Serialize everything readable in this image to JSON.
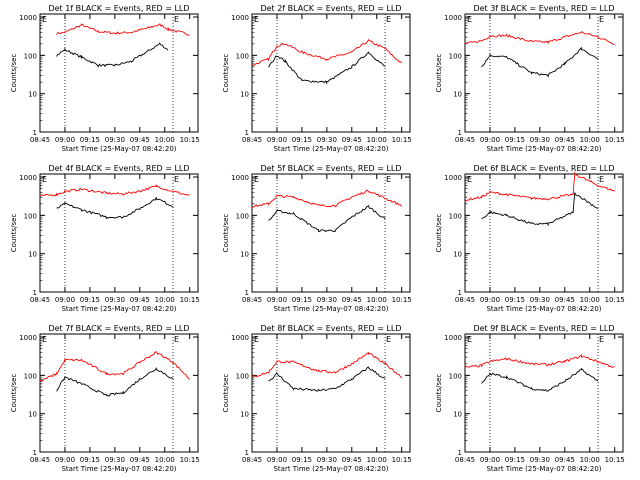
{
  "x_tick_labels": [
    "08:45",
    "09:00",
    "09:15",
    "09:30",
    "09:45",
    "10:00",
    "10:15"
  ],
  "y_tick_labels": [
    "1",
    "10",
    "100",
    "1000"
  ],
  "ylabel": "Counts/sec",
  "xlabel": "Start Time (25-May-07 08:42:20)",
  "marker_labels": [
    "E",
    "E"
  ],
  "colors": {
    "events": "#000000",
    "lld": "#ff0000"
  },
  "chart_data": [
    {
      "type": "line",
      "title": "Det 1f BLACK = Events, RED = LLD",
      "ylim": [
        1,
        1000
      ],
      "yscale": "log",
      "x": [
        "08:55",
        "09:00",
        "09:10",
        "09:20",
        "09:30",
        "09:40",
        "09:50",
        "09:57",
        "10:02",
        "10:15"
      ],
      "series": [
        {
          "values": [
            370,
            400,
            620,
            420,
            380,
            400,
            520,
            640,
            480,
            350
          ]
        },
        {
          "values": [
            100,
            140,
            90,
            55,
            55,
            70,
            130,
            200,
            140,
            null
          ]
        }
      ]
    },
    {
      "type": "line",
      "title": "Det 2f BLACK = Events, RED = LLD",
      "ylim": [
        1,
        1000
      ],
      "yscale": "log",
      "x": [
        "08:45",
        "08:55",
        "09:00",
        "09:05",
        "09:15",
        "09:30",
        "09:45",
        "09:55",
        "10:05",
        "10:15"
      ],
      "series": [
        {
          "values": [
            55,
            80,
            180,
            200,
            120,
            80,
            120,
            240,
            150,
            60
          ]
        },
        {
          "values": [
            null,
            50,
            100,
            70,
            22,
            20,
            50,
            120,
            50,
            null
          ]
        }
      ]
    },
    {
      "type": "line",
      "title": "Det 3f BLACK = Events, RED = LLD",
      "ylim": [
        1,
        1000
      ],
      "yscale": "log",
      "x": [
        "08:45",
        "08:55",
        "09:00",
        "09:10",
        "09:25",
        "09:35",
        "09:45",
        "09:55",
        "10:05",
        "10:15"
      ],
      "series": [
        {
          "values": [
            200,
            240,
            320,
            330,
            230,
            220,
            300,
            400,
            300,
            200
          ]
        },
        {
          "values": [
            null,
            50,
            100,
            90,
            35,
            30,
            60,
            150,
            80,
            null
          ]
        }
      ]
    },
    {
      "type": "line",
      "title": "Det 4f BLACK = Events, RED = LLD",
      "ylim": [
        1,
        1000
      ],
      "yscale": "log",
      "x": [
        "08:45",
        "08:55",
        "09:00",
        "09:10",
        "09:25",
        "09:35",
        "09:45",
        "09:55",
        "10:05",
        "10:15"
      ],
      "series": [
        {
          "values": [
            320,
            350,
            420,
            480,
            380,
            360,
            430,
            580,
            420,
            330
          ]
        },
        {
          "values": [
            null,
            150,
            200,
            140,
            90,
            90,
            150,
            280,
            170,
            null
          ]
        }
      ]
    },
    {
      "type": "line",
      "title": "Det 5f BLACK = Events, RED = LLD",
      "ylim": [
        1,
        1000
      ],
      "yscale": "log",
      "x": [
        "08:45",
        "08:55",
        "09:00",
        "09:10",
        "09:25",
        "09:35",
        "09:45",
        "09:55",
        "10:05",
        "10:15"
      ],
      "series": [
        {
          "values": [
            170,
            200,
            320,
            300,
            180,
            180,
            300,
            440,
            280,
            180
          ]
        },
        {
          "values": [
            null,
            70,
            130,
            110,
            40,
            40,
            90,
            170,
            80,
            null
          ]
        }
      ]
    },
    {
      "type": "line",
      "title": "Det 6f BLACK = Events, RED = LLD",
      "ylim": [
        1,
        1000
      ],
      "yscale": "log",
      "x": [
        "08:45",
        "08:55",
        "09:00",
        "09:10",
        "09:25",
        "09:35",
        "09:50",
        "09:51",
        "10:05",
        "10:15"
      ],
      "series": [
        {
          "values": [
            250,
            300,
            400,
            350,
            280,
            270,
            350,
            1200,
            600,
            430
          ]
        },
        {
          "values": [
            null,
            80,
            120,
            100,
            60,
            60,
            120,
            380,
            150,
            null
          ]
        }
      ]
    },
    {
      "type": "line",
      "title": "Det 7f BLACK = Events, RED = LLD",
      "ylim": [
        1,
        1000
      ],
      "yscale": "log",
      "x": [
        "08:45",
        "08:55",
        "09:00",
        "09:10",
        "09:25",
        "09:35",
        "09:45",
        "09:55",
        "10:05",
        "10:15"
      ],
      "series": [
        {
          "values": [
            70,
            110,
            250,
            250,
            110,
            110,
            220,
            400,
            220,
            80
          ]
        },
        {
          "values": [
            null,
            40,
            90,
            60,
            30,
            35,
            80,
            150,
            80,
            null
          ]
        }
      ]
    },
    {
      "type": "line",
      "title": "Det 8f BLACK = Events, RED = LLD",
      "ylim": [
        1,
        1000
      ],
      "yscale": "log",
      "x": [
        "08:45",
        "08:55",
        "09:00",
        "09:10",
        "09:25",
        "09:35",
        "09:45",
        "09:55",
        "10:05",
        "10:15"
      ],
      "series": [
        {
          "values": [
            90,
            120,
            230,
            220,
            130,
            120,
            200,
            380,
            200,
            90
          ]
        },
        {
          "values": [
            null,
            70,
            110,
            45,
            40,
            45,
            80,
            160,
            80,
            null
          ]
        }
      ]
    },
    {
      "type": "line",
      "title": "Det 9f BLACK = Events, RED = LLD",
      "ylim": [
        1,
        1000
      ],
      "yscale": "log",
      "x": [
        "08:45",
        "08:55",
        "09:00",
        "09:10",
        "09:25",
        "09:35",
        "09:45",
        "09:55",
        "10:05",
        "10:15"
      ],
      "series": [
        {
          "values": [
            160,
            180,
            230,
            270,
            200,
            190,
            230,
            320,
            230,
            160
          ]
        },
        {
          "values": [
            null,
            60,
            110,
            90,
            45,
            40,
            70,
            140,
            70,
            null
          ]
        }
      ]
    }
  ]
}
